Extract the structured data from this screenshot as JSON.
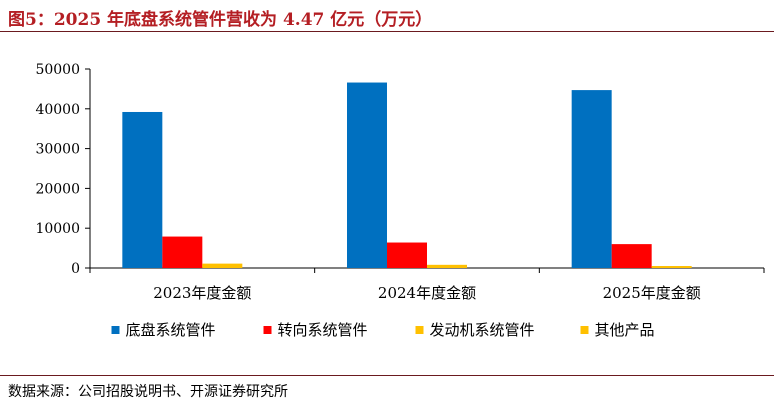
{
  "figure": {
    "title": "图5：2025 年底盘系统管件营收为 4.47 亿元（万元）",
    "source": "数据来源：公司招股说明书、开源证券研究所"
  },
  "chart_data": {
    "type": "bar",
    "title": "图5：2025 年底盘系统管件营收为 4.47 亿元（万元）",
    "categories": [
      "2023年度金额",
      "2024年度金额",
      "2025年度金额"
    ],
    "series": [
      {
        "name": "底盘系统管件",
        "color": "#0070c0",
        "values": [
          39200,
          46600,
          44700
        ]
      },
      {
        "name": "转向系统管件",
        "color": "#ff0000",
        "values": [
          7900,
          6400,
          6000
        ]
      },
      {
        "name": "发动机系统管件",
        "color": "#ffc000",
        "values": [
          1100,
          800,
          500
        ]
      },
      {
        "name": "其他产品",
        "color": "#ffc000",
        "values": [
          0,
          0,
          0
        ]
      }
    ],
    "ylim": [
      0,
      50000
    ],
    "yticks": [
      "0",
      "10000",
      "20000",
      "30000",
      "40000",
      "50000"
    ],
    "grid": false,
    "legend_position": "bottom"
  }
}
